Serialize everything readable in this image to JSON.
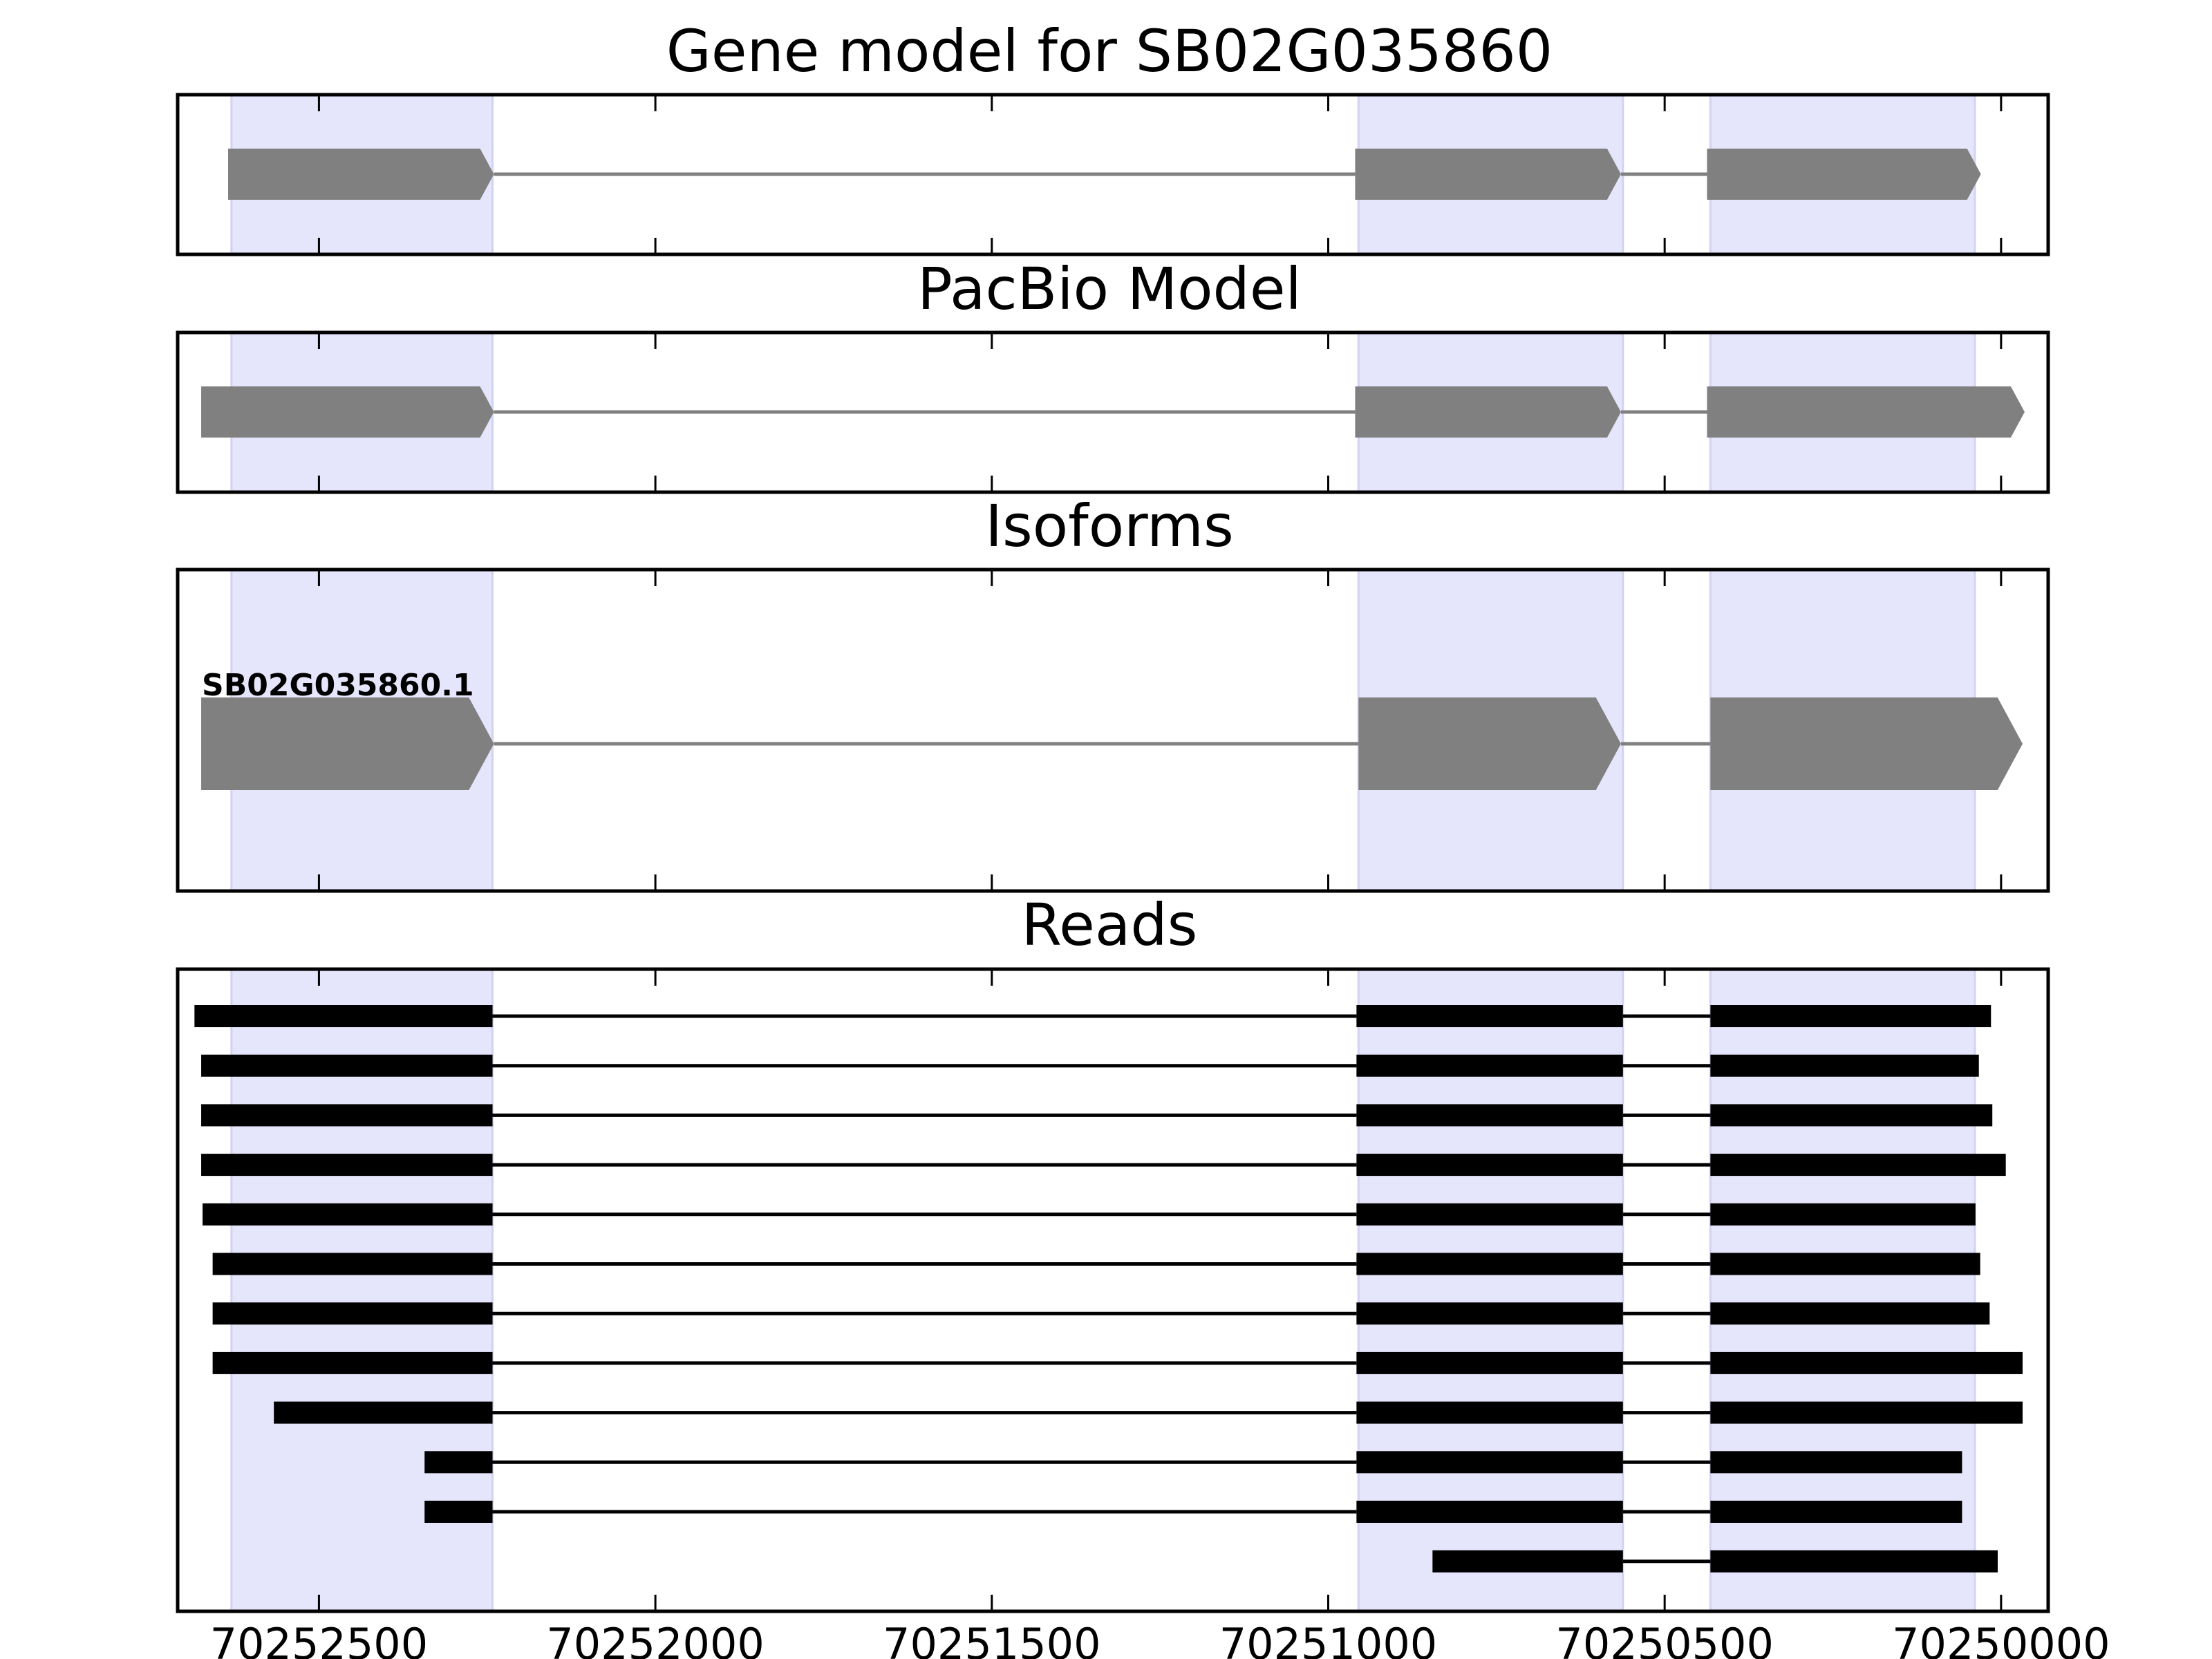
{
  "chart_data": {
    "type": "gene-track",
    "x_axis": {
      "inverted": true,
      "xlim": [
        70252710,
        70249930
      ],
      "ticks": [
        70252500,
        70252000,
        70251500,
        70251000,
        70250500,
        70250000
      ],
      "tick_labels": [
        "70252500",
        "70252000",
        "70251500",
        "70251000",
        "70250500",
        "70250000"
      ]
    },
    "colors": {
      "exon_shade": "#e5e5fc",
      "exon_shade_edge": "#d2d2f2",
      "gene_feature": "#808080",
      "read": "#000000"
    },
    "exon_regions": [
      {
        "start": 70252630,
        "end": 70252242
      },
      {
        "start": 70250955,
        "end": 70250562
      },
      {
        "start": 70250432,
        "end": 70250039
      }
    ],
    "gene_model": {
      "title": "Gene model for SB02G035860",
      "exons": [
        {
          "start": 70252635,
          "end": 70252240
        },
        {
          "start": 70250960,
          "end": 70250565
        },
        {
          "start": 70250437,
          "end": 70250030
        }
      ]
    },
    "pacbio_model": {
      "title": "PacBio Model",
      "exons": [
        {
          "start": 70252675,
          "end": 70252240
        },
        {
          "start": 70250960,
          "end": 70250565
        },
        {
          "start": 70250437,
          "end": 70249965
        }
      ]
    },
    "isoforms": {
      "title": "Isoforms",
      "items": [
        {
          "name": "SB02G035860.1",
          "exons": [
            {
              "start": 70252675,
              "end": 70252240
            },
            {
              "start": 70250955,
              "end": 70250565
            },
            {
              "start": 70250432,
              "end": 70249968
            }
          ]
        }
      ]
    },
    "reads": {
      "title": "Reads",
      "items": [
        {
          "exons": [
            {
              "start": 70252685,
              "end": 70252242
            },
            {
              "start": 70250958,
              "end": 70250562
            },
            {
              "start": 70250432,
              "end": 70250015
            }
          ]
        },
        {
          "exons": [
            {
              "start": 70252675,
              "end": 70252242
            },
            {
              "start": 70250958,
              "end": 70250562
            },
            {
              "start": 70250432,
              "end": 70250033
            }
          ]
        },
        {
          "exons": [
            {
              "start": 70252675,
              "end": 70252242
            },
            {
              "start": 70250958,
              "end": 70250562
            },
            {
              "start": 70250432,
              "end": 70250013
            }
          ]
        },
        {
          "exons": [
            {
              "start": 70252675,
              "end": 70252242
            },
            {
              "start": 70250958,
              "end": 70250562
            },
            {
              "start": 70250432,
              "end": 70249993
            }
          ]
        },
        {
          "exons": [
            {
              "start": 70252673,
              "end": 70252242
            },
            {
              "start": 70250958,
              "end": 70250562
            },
            {
              "start": 70250432,
              "end": 70250038
            }
          ]
        },
        {
          "exons": [
            {
              "start": 70252658,
              "end": 70252242
            },
            {
              "start": 70250958,
              "end": 70250562
            },
            {
              "start": 70250432,
              "end": 70250031
            }
          ]
        },
        {
          "exons": [
            {
              "start": 70252658,
              "end": 70252242
            },
            {
              "start": 70250958,
              "end": 70250562
            },
            {
              "start": 70250432,
              "end": 70250017
            }
          ]
        },
        {
          "exons": [
            {
              "start": 70252658,
              "end": 70252242
            },
            {
              "start": 70250958,
              "end": 70250562
            },
            {
              "start": 70250432,
              "end": 70249968
            }
          ]
        },
        {
          "exons": [
            {
              "start": 70252567,
              "end": 70252242
            },
            {
              "start": 70250958,
              "end": 70250562
            },
            {
              "start": 70250432,
              "end": 70249968
            }
          ]
        },
        {
          "exons": [
            {
              "start": 70252343,
              "end": 70252242
            },
            {
              "start": 70250958,
              "end": 70250562
            },
            {
              "start": 70250432,
              "end": 70250058
            }
          ]
        },
        {
          "exons": [
            {
              "start": 70252343,
              "end": 70252242
            },
            {
              "start": 70250958,
              "end": 70250562
            },
            {
              "start": 70250432,
              "end": 70250058
            }
          ]
        },
        {
          "exons": [
            {
              "start": 70250845,
              "end": 70250562
            },
            {
              "start": 70250432,
              "end": 70250005
            }
          ]
        }
      ]
    }
  }
}
